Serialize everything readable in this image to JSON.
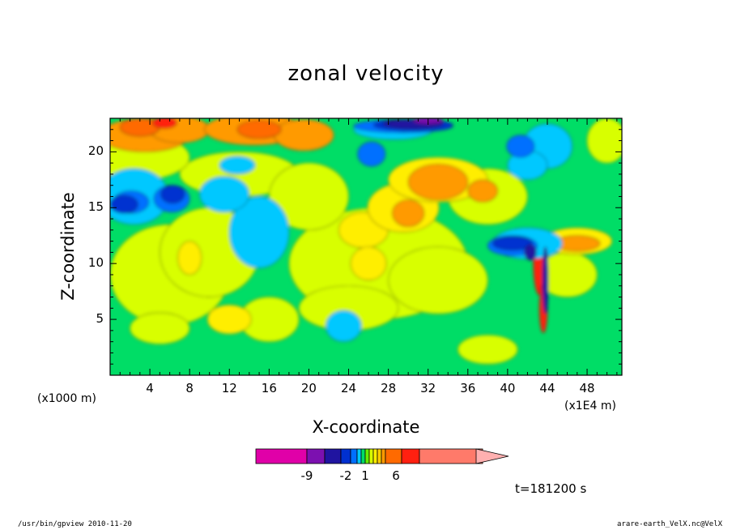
{
  "chart_data": {
    "type": "heatmap",
    "title": "zonal velocity",
    "xlabel": "X-coordinate",
    "ylabel": "Z-coordinate",
    "x_unit_left": "(x1000 m)",
    "x_unit_right": "(x1E4 m)",
    "x_ticks": [
      "4",
      "8",
      "12",
      "16",
      "20",
      "24",
      "28",
      "32",
      "36",
      "40",
      "44",
      "48"
    ],
    "y_ticks": [
      "5",
      "10",
      "15",
      "20"
    ],
    "xlim": [
      0,
      51.5
    ],
    "ylim": [
      0,
      23
    ],
    "colorbar_labels": [
      "-9",
      "-2",
      "1",
      "6"
    ],
    "colorbar_colors": [
      "#e000a8",
      "#7c10b0",
      "#2014a0",
      "#0030d0",
      "#0070ff",
      "#00c8ff",
      "#00dd66",
      "#66ee00",
      "#d8ff00",
      "#ffee00",
      "#ffcc00",
      "#ff9a00",
      "#ff6a00",
      "#ff2010",
      "#ff7a6a",
      "#ffb0b0"
    ],
    "time_label": "t=181200 s"
  },
  "footer": {
    "left": "/usr/bin/gpview   2010-11-20",
    "right": "arare-earth_VelX.nc@VelX"
  }
}
